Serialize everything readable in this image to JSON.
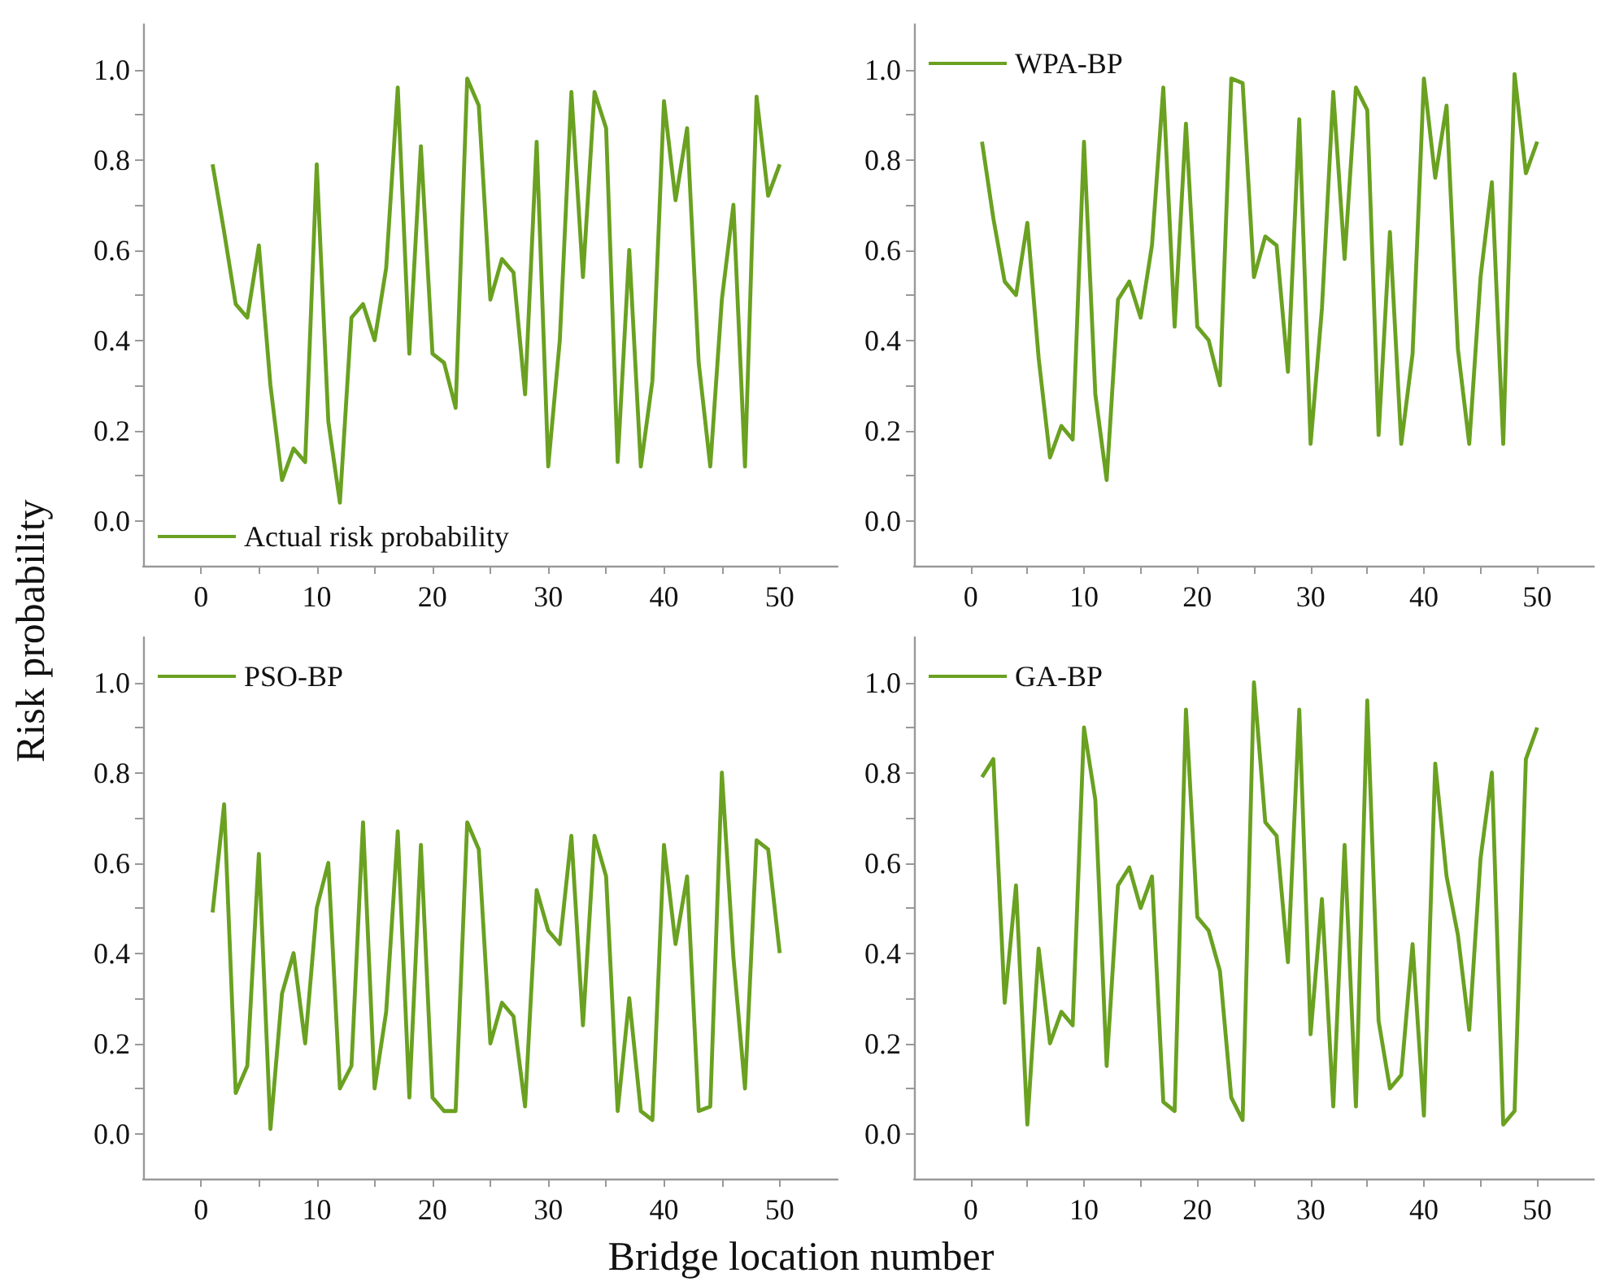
{
  "chart_data": [
    {
      "type": "line",
      "ylabel": "Risk probability",
      "x": [
        1,
        2,
        3,
        4,
        5,
        6,
        7,
        8,
        9,
        10,
        11,
        12,
        13,
        14,
        15,
        16,
        17,
        18,
        19,
        20,
        21,
        22,
        23,
        24,
        25,
        26,
        27,
        28,
        29,
        30,
        31,
        32,
        33,
        34,
        35,
        36,
        37,
        38,
        39,
        40,
        41,
        42,
        43,
        44,
        45,
        46,
        47,
        48,
        49,
        50
      ],
      "series": [
        {
          "name": "Actual risk probability",
          "color": "#6aa121",
          "values": [
            0.79,
            0.64,
            0.48,
            0.45,
            0.61,
            0.3,
            0.09,
            0.16,
            0.13,
            0.79,
            0.22,
            0.04,
            0.45,
            0.48,
            0.4,
            0.56,
            0.96,
            0.37,
            0.83,
            0.37,
            0.35,
            0.25,
            0.98,
            0.92,
            0.49,
            0.58,
            0.55,
            0.28,
            0.84,
            0.12,
            0.4,
            0.95,
            0.54,
            0.95,
            0.87,
            0.13,
            0.6,
            0.12,
            0.31,
            0.93,
            0.71,
            0.87,
            0.35,
            0.12,
            0.49,
            0.7,
            0.12,
            0.94,
            0.72,
            0.79
          ]
        }
      ],
      "xlim": [
        -5,
        55
      ],
      "ylim": [
        -0.1,
        1.1
      ],
      "xticks": [
        0,
        {
          "value": 5,
          "label": null
        },
        10,
        {
          "value": 15,
          "label": null
        },
        20,
        {
          "value": 25,
          "label": null
        },
        30,
        {
          "value": 35,
          "label": null
        },
        40,
        {
          "value": 45,
          "label": null
        },
        50
      ],
      "yticks": [
        {
          "value": 0,
          "label": "0.0"
        },
        {
          "value": 0.1,
          "label": null
        },
        {
          "value": 0.2,
          "label": "0.2"
        },
        {
          "value": 0.3,
          "label": null
        },
        {
          "value": 0.4,
          "label": "0.4"
        },
        {
          "value": 0.5,
          "label": null
        },
        {
          "value": 0.6,
          "label": "0.6"
        },
        {
          "value": 0.7,
          "label": null
        },
        {
          "value": 0.8,
          "label": "0.8"
        },
        {
          "value": 0.9,
          "label": null
        },
        {
          "value": 1,
          "label": "1.0"
        }
      ],
      "legend": "bottom left"
    },
    {
      "type": "line",
      "x": [
        1,
        2,
        3,
        4,
        5,
        6,
        7,
        8,
        9,
        10,
        11,
        12,
        13,
        14,
        15,
        16,
        17,
        18,
        19,
        20,
        21,
        22,
        23,
        24,
        25,
        26,
        27,
        28,
        29,
        30,
        31,
        32,
        33,
        34,
        35,
        36,
        37,
        38,
        39,
        40,
        41,
        42,
        43,
        44,
        45,
        46,
        47,
        48,
        49,
        50
      ],
      "series": [
        {
          "name": "WPA-BP",
          "color": "#6aa121",
          "values": [
            0.84,
            0.67,
            0.53,
            0.5,
            0.66,
            0.36,
            0.14,
            0.21,
            0.18,
            0.84,
            0.28,
            0.09,
            0.49,
            0.53,
            0.45,
            0.61,
            0.96,
            0.43,
            0.88,
            0.43,
            0.4,
            0.3,
            0.98,
            0.97,
            0.54,
            0.63,
            0.61,
            0.33,
            0.89,
            0.17,
            0.47,
            0.95,
            0.58,
            0.96,
            0.91,
            0.19,
            0.64,
            0.17,
            0.37,
            0.98,
            0.76,
            0.92,
            0.38,
            0.17,
            0.54,
            0.75,
            0.17,
            0.99,
            0.77,
            0.84
          ]
        }
      ],
      "xlim": [
        -5,
        55
      ],
      "ylim": [
        -0.1,
        1.1
      ],
      "xticks": [
        0,
        {
          "value": 5,
          "label": null
        },
        10,
        {
          "value": 15,
          "label": null
        },
        20,
        {
          "value": 25,
          "label": null
        },
        30,
        {
          "value": 35,
          "label": null
        },
        40,
        {
          "value": 45,
          "label": null
        },
        50
      ],
      "yticks": [
        {
          "value": 0,
          "label": "0.0"
        },
        {
          "value": 0.1,
          "label": null
        },
        {
          "value": 0.2,
          "label": "0.2"
        },
        {
          "value": 0.3,
          "label": null
        },
        {
          "value": 0.4,
          "label": "0.4"
        },
        {
          "value": 0.5,
          "label": null
        },
        {
          "value": 0.6,
          "label": "0.6"
        },
        {
          "value": 0.7,
          "label": null
        },
        {
          "value": 0.8,
          "label": "0.8"
        },
        {
          "value": 0.9,
          "label": null
        },
        {
          "value": 1,
          "label": "1.0"
        }
      ],
      "legend": "top left"
    },
    {
      "type": "line",
      "xlabel": "Bridge location number",
      "x": [
        1,
        2,
        3,
        4,
        5,
        6,
        7,
        8,
        9,
        10,
        11,
        12,
        13,
        14,
        15,
        16,
        17,
        18,
        19,
        20,
        21,
        22,
        23,
        24,
        25,
        26,
        27,
        28,
        29,
        30,
        31,
        32,
        33,
        34,
        35,
        36,
        37,
        38,
        39,
        40,
        41,
        42,
        43,
        44,
        45,
        46,
        47,
        48,
        49,
        50
      ],
      "series": [
        {
          "name": "PSO-BP",
          "color": "#6aa121",
          "values": [
            0.49,
            0.73,
            0.09,
            0.15,
            0.62,
            0.01,
            0.31,
            0.4,
            0.2,
            0.5,
            0.6,
            0.1,
            0.15,
            0.69,
            0.1,
            0.27,
            0.67,
            0.08,
            0.64,
            0.08,
            0.05,
            0.05,
            0.69,
            0.63,
            0.2,
            0.29,
            0.26,
            0.06,
            0.54,
            0.45,
            0.42,
            0.66,
            0.24,
            0.66,
            0.57,
            0.05,
            0.3,
            0.05,
            0.03,
            0.64,
            0.42,
            0.57,
            0.05,
            0.06,
            0.8,
            0.39,
            0.1,
            0.65,
            0.63,
            0.4
          ]
        }
      ],
      "xlim": [
        -5,
        55
      ],
      "ylim": [
        -0.1,
        1.1
      ],
      "xticks": [
        0,
        {
          "value": 5,
          "label": null
        },
        10,
        {
          "value": 15,
          "label": null
        },
        20,
        {
          "value": 25,
          "label": null
        },
        30,
        {
          "value": 35,
          "label": null
        },
        40,
        {
          "value": 45,
          "label": null
        },
        50
      ],
      "yticks": [
        {
          "value": 0,
          "label": "0.0"
        },
        {
          "value": 0.1,
          "label": null
        },
        {
          "value": 0.2,
          "label": "0.2"
        },
        {
          "value": 0.3,
          "label": null
        },
        {
          "value": 0.4,
          "label": "0.4"
        },
        {
          "value": 0.5,
          "label": null
        },
        {
          "value": 0.6,
          "label": "0.6"
        },
        {
          "value": 0.7,
          "label": null
        },
        {
          "value": 0.8,
          "label": "0.8"
        },
        {
          "value": 0.9,
          "label": null
        },
        {
          "value": 1,
          "label": "1.0"
        }
      ],
      "legend": "top left"
    },
    {
      "type": "line",
      "x": [
        1,
        2,
        3,
        4,
        5,
        6,
        7,
        8,
        9,
        10,
        11,
        12,
        13,
        14,
        15,
        16,
        17,
        18,
        19,
        20,
        21,
        22,
        23,
        24,
        25,
        26,
        27,
        28,
        29,
        30,
        31,
        32,
        33,
        34,
        35,
        36,
        37,
        38,
        39,
        40,
        41,
        42,
        43,
        44,
        45,
        46,
        47,
        48,
        49,
        50
      ],
      "series": [
        {
          "name": "GA-BP",
          "color": "#6aa121",
          "values": [
            0.79,
            0.83,
            0.29,
            0.55,
            0.02,
            0.41,
            0.2,
            0.27,
            0.24,
            0.9,
            0.74,
            0.15,
            0.55,
            0.59,
            0.5,
            0.57,
            0.07,
            0.05,
            0.94,
            0.48,
            0.45,
            0.36,
            0.08,
            0.03,
            1,
            0.69,
            0.66,
            0.38,
            0.94,
            0.22,
            0.52,
            0.06,
            0.64,
            0.06,
            0.96,
            0.25,
            0.1,
            0.13,
            0.42,
            0.04,
            0.82,
            0.57,
            0.44,
            0.23,
            0.61,
            0.8,
            0.02,
            0.05,
            0.83,
            0.9
          ]
        }
      ],
      "xlim": [
        -5,
        55
      ],
      "ylim": [
        -0.1,
        1.1
      ],
      "xticks": [
        0,
        {
          "value": 5,
          "label": null
        },
        10,
        {
          "value": 15,
          "label": null
        },
        20,
        {
          "value": 25,
          "label": null
        },
        30,
        {
          "value": 35,
          "label": null
        },
        40,
        {
          "value": 45,
          "label": null
        },
        50
      ],
      "yticks": [
        {
          "value": 0,
          "label": "0.0"
        },
        {
          "value": 0.1,
          "label": null
        },
        {
          "value": 0.2,
          "label": "0.2"
        },
        {
          "value": 0.3,
          "label": null
        },
        {
          "value": 0.4,
          "label": "0.4"
        },
        {
          "value": 0.5,
          "label": null
        },
        {
          "value": 0.6,
          "label": "0.6"
        },
        {
          "value": 0.7,
          "label": null
        },
        {
          "value": 0.8,
          "label": "0.8"
        },
        {
          "value": 0.9,
          "label": null
        },
        {
          "value": 1,
          "label": "1.0"
        }
      ],
      "legend": "top left"
    }
  ]
}
